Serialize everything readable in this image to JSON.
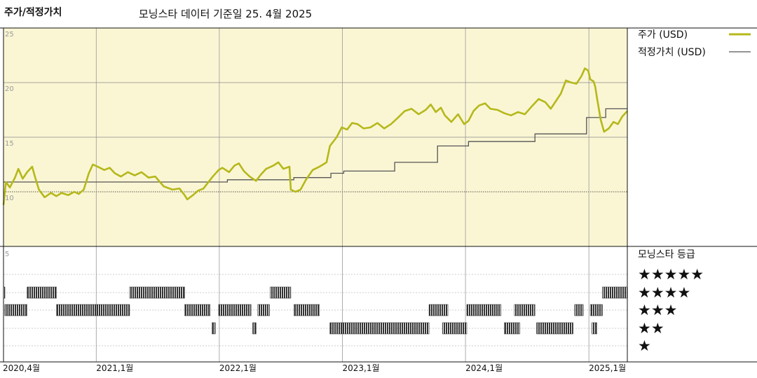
{
  "header": {
    "left_title": "주가/적정가치",
    "main_title": "모닝스타 데이터 기준일 25. 4월 2025"
  },
  "colors": {
    "price": "#b5b81a",
    "fair_value": "#555555",
    "panel_bg": "#faf6d4",
    "rating_bar": "#333333",
    "grid": "#888888"
  },
  "chart_data": [
    {
      "type": "line",
      "title": "",
      "x_axis": "date",
      "x_range": [
        "2020-04-01",
        "2025-04-25"
      ],
      "ylim": [
        5,
        25
      ],
      "yticks": [
        10,
        15,
        20,
        25
      ],
      "ytick_labels": [
        "10",
        "15",
        "20",
        "25"
      ],
      "grid": true,
      "legend_position": "right",
      "series": [
        {
          "name": "주가 (USD)",
          "style": "price",
          "points": [
            [
              "2020-04-01",
              8.8
            ],
            [
              "2020-04-08",
              10.9
            ],
            [
              "2020-04-20",
              10.4
            ],
            [
              "2020-05-05",
              11.3
            ],
            [
              "2020-05-15",
              12.1
            ],
            [
              "2020-05-28",
              11.2
            ],
            [
              "2020-06-10",
              11.8
            ],
            [
              "2020-06-25",
              12.3
            ],
            [
              "2020-07-05",
              11.2
            ],
            [
              "2020-07-15",
              10.2
            ],
            [
              "2020-08-01",
              9.5
            ],
            [
              "2020-08-20",
              9.9
            ],
            [
              "2020-09-05",
              9.6
            ],
            [
              "2020-09-20",
              9.9
            ],
            [
              "2020-10-10",
              9.7
            ],
            [
              "2020-10-28",
              10.0
            ],
            [
              "2020-11-10",
              9.8
            ],
            [
              "2020-11-25",
              10.2
            ],
            [
              "2020-12-10",
              11.7
            ],
            [
              "2020-12-22",
              12.5
            ],
            [
              "2021-01-05",
              12.3
            ],
            [
              "2021-01-25",
              12.0
            ],
            [
              "2021-02-10",
              12.2
            ],
            [
              "2021-02-25",
              11.7
            ],
            [
              "2021-03-15",
              11.4
            ],
            [
              "2021-04-05",
              11.8
            ],
            [
              "2021-04-25",
              11.5
            ],
            [
              "2021-05-15",
              11.8
            ],
            [
              "2021-06-05",
              11.3
            ],
            [
              "2021-06-25",
              11.4
            ],
            [
              "2021-07-20",
              10.5
            ],
            [
              "2021-08-15",
              10.2
            ],
            [
              "2021-09-05",
              10.3
            ],
            [
              "2021-09-20",
              9.7
            ],
            [
              "2021-09-28",
              9.3
            ],
            [
              "2021-10-15",
              9.7
            ],
            [
              "2021-10-30",
              10.1
            ],
            [
              "2021-11-15",
              10.3
            ],
            [
              "2021-12-10",
              11.3
            ],
            [
              "2021-12-30",
              12.0
            ],
            [
              "2022-01-10",
              12.2
            ],
            [
              "2022-01-30",
              11.8
            ],
            [
              "2022-02-15",
              12.4
            ],
            [
              "2022-02-28",
              12.6
            ],
            [
              "2022-03-15",
              11.9
            ],
            [
              "2022-04-01",
              11.4
            ],
            [
              "2022-04-20",
              11.0
            ],
            [
              "2022-05-05",
              11.6
            ],
            [
              "2022-05-20",
              12.1
            ],
            [
              "2022-06-10",
              12.4
            ],
            [
              "2022-06-25",
              12.7
            ],
            [
              "2022-07-10",
              12.1
            ],
            [
              "2022-07-28",
              12.3
            ],
            [
              "2022-08-01",
              10.2
            ],
            [
              "2022-08-15",
              10.0
            ],
            [
              "2022-08-30",
              10.2
            ],
            [
              "2022-09-15",
              11.1
            ],
            [
              "2022-10-05",
              12.0
            ],
            [
              "2022-10-25",
              12.3
            ],
            [
              "2022-11-15",
              12.7
            ],
            [
              "2022-11-25",
              14.2
            ],
            [
              "2022-12-15",
              15.0
            ],
            [
              "2022-12-30",
              15.9
            ],
            [
              "2023-01-15",
              15.7
            ],
            [
              "2023-01-30",
              16.3
            ],
            [
              "2023-02-15",
              16.2
            ],
            [
              "2023-03-05",
              15.8
            ],
            [
              "2023-03-25",
              15.9
            ],
            [
              "2023-04-15",
              16.3
            ],
            [
              "2023-05-05",
              15.8
            ],
            [
              "2023-05-25",
              16.2
            ],
            [
              "2023-06-15",
              16.8
            ],
            [
              "2023-07-05",
              17.4
            ],
            [
              "2023-07-25",
              17.6
            ],
            [
              "2023-08-15",
              17.1
            ],
            [
              "2023-09-05",
              17.5
            ],
            [
              "2023-09-20",
              18.0
            ],
            [
              "2023-10-05",
              17.3
            ],
            [
              "2023-10-20",
              17.7
            ],
            [
              "2023-11-01",
              17.0
            ],
            [
              "2023-11-20",
              16.4
            ],
            [
              "2023-12-10",
              17.1
            ],
            [
              "2023-12-28",
              16.2
            ],
            [
              "2024-01-10",
              16.5
            ],
            [
              "2024-01-25",
              17.4
            ],
            [
              "2024-02-10",
              17.9
            ],
            [
              "2024-02-28",
              18.1
            ],
            [
              "2024-03-15",
              17.6
            ],
            [
              "2024-04-05",
              17.5
            ],
            [
              "2024-04-25",
              17.2
            ],
            [
              "2024-05-15",
              17.0
            ],
            [
              "2024-06-05",
              17.3
            ],
            [
              "2024-06-25",
              17.1
            ],
            [
              "2024-07-15",
              17.8
            ],
            [
              "2024-08-05",
              18.5
            ],
            [
              "2024-08-25",
              18.2
            ],
            [
              "2024-09-10",
              17.6
            ],
            [
              "2024-09-25",
              18.3
            ],
            [
              "2024-10-10",
              19.0
            ],
            [
              "2024-10-25",
              20.2
            ],
            [
              "2024-11-10",
              20.0
            ],
            [
              "2024-11-25",
              19.9
            ],
            [
              "2024-12-10",
              20.6
            ],
            [
              "2024-12-20",
              21.3
            ],
            [
              "2024-12-30",
              21.1
            ],
            [
              "2025-01-05",
              20.3
            ],
            [
              "2025-01-15",
              20.1
            ],
            [
              "2025-01-20",
              19.6
            ],
            [
              "2025-01-25",
              18.6
            ],
            [
              "2025-02-05",
              16.6
            ],
            [
              "2025-02-15",
              15.5
            ],
            [
              "2025-03-01",
              15.8
            ],
            [
              "2025-03-15",
              16.4
            ],
            [
              "2025-03-28",
              16.2
            ],
            [
              "2025-04-10",
              16.9
            ],
            [
              "2025-04-25",
              17.4
            ]
          ]
        },
        {
          "name": "적정가치 (USD)",
          "style": "fair",
          "points": [
            [
              "2020-04-01",
              10.9
            ],
            [
              "2022-01-25",
              10.9
            ],
            [
              "2022-01-25",
              11.1
            ],
            [
              "2022-08-10",
              11.1
            ],
            [
              "2022-08-10",
              11.3
            ],
            [
              "2022-11-28",
              11.3
            ],
            [
              "2022-11-28",
              11.7
            ],
            [
              "2023-01-05",
              11.7
            ],
            [
              "2023-01-05",
              11.9
            ],
            [
              "2023-06-05",
              11.9
            ],
            [
              "2023-06-05",
              12.7
            ],
            [
              "2023-10-10",
              12.7
            ],
            [
              "2023-10-10",
              14.2
            ],
            [
              "2024-01-10",
              14.2
            ],
            [
              "2024-01-10",
              14.6
            ],
            [
              "2024-07-25",
              14.6
            ],
            [
              "2024-07-25",
              15.3
            ],
            [
              "2024-12-25",
              15.3
            ],
            [
              "2024-12-25",
              16.8
            ],
            [
              "2025-02-20",
              16.8
            ],
            [
              "2025-02-20",
              17.6
            ],
            [
              "2025-04-25",
              17.6
            ]
          ]
        }
      ]
    },
    {
      "type": "bar",
      "title": "모닝스타 등급",
      "x_axis": "date",
      "x_range": [
        "2020-04-01",
        "2025-04-25"
      ],
      "yticks": [
        5
      ],
      "ytick_labels": [
        "5"
      ],
      "levels": [
        5,
        4,
        3,
        2,
        1
      ],
      "level_labels": [
        "★★★★★",
        "★★★★",
        "★★★",
        "★★",
        "★"
      ],
      "segments": [
        {
          "rating": 4,
          "start": "2020-04-01",
          "end": "2020-04-05"
        },
        {
          "rating": 4,
          "start": "2020-06-10",
          "end": "2020-09-05"
        },
        {
          "rating": 4,
          "start": "2021-04-10",
          "end": "2021-09-20"
        },
        {
          "rating": 4,
          "start": "2022-06-01",
          "end": "2022-08-01"
        },
        {
          "rating": 4,
          "start": "2025-02-10",
          "end": "2025-04-25"
        },
        {
          "rating": 3,
          "start": "2020-04-05",
          "end": "2020-06-10"
        },
        {
          "rating": 3,
          "start": "2020-09-05",
          "end": "2021-04-10"
        },
        {
          "rating": 3,
          "start": "2021-09-20",
          "end": "2021-12-05"
        },
        {
          "rating": 3,
          "start": "2021-12-30",
          "end": "2022-04-05"
        },
        {
          "rating": 3,
          "start": "2022-04-25",
          "end": "2022-05-30"
        },
        {
          "rating": 3,
          "start": "2022-08-10",
          "end": "2022-10-25"
        },
        {
          "rating": 3,
          "start": "2023-09-15",
          "end": "2023-11-10"
        },
        {
          "rating": 3,
          "start": "2024-01-05",
          "end": "2024-04-15"
        },
        {
          "rating": 3,
          "start": "2024-05-25",
          "end": "2024-07-25"
        },
        {
          "rating": 3,
          "start": "2024-11-20",
          "end": "2024-12-15"
        },
        {
          "rating": 3,
          "start": "2025-01-05",
          "end": "2025-02-10"
        },
        {
          "rating": 2,
          "start": "2021-12-10",
          "end": "2021-12-20"
        },
        {
          "rating": 2,
          "start": "2022-04-10",
          "end": "2022-04-20"
        },
        {
          "rating": 2,
          "start": "2022-11-25",
          "end": "2023-09-15"
        },
        {
          "rating": 2,
          "start": "2023-10-25",
          "end": "2024-01-05"
        },
        {
          "rating": 2,
          "start": "2024-04-25",
          "end": "2024-06-10"
        },
        {
          "rating": 2,
          "start": "2024-07-30",
          "end": "2024-11-15"
        },
        {
          "rating": 2,
          "start": "2025-01-10",
          "end": "2025-01-25"
        }
      ]
    }
  ],
  "x_axis_labels": [
    {
      "label": "2020,4월",
      "date": "2020-04-01"
    },
    {
      "label": "2021,1월",
      "date": "2021-01-01"
    },
    {
      "label": "2022,1월",
      "date": "2022-01-01"
    },
    {
      "label": "2023,1월",
      "date": "2023-01-01"
    },
    {
      "label": "2024,1월",
      "date": "2024-01-01"
    },
    {
      "label": "2025,1월",
      "date": "2025-01-01"
    }
  ]
}
